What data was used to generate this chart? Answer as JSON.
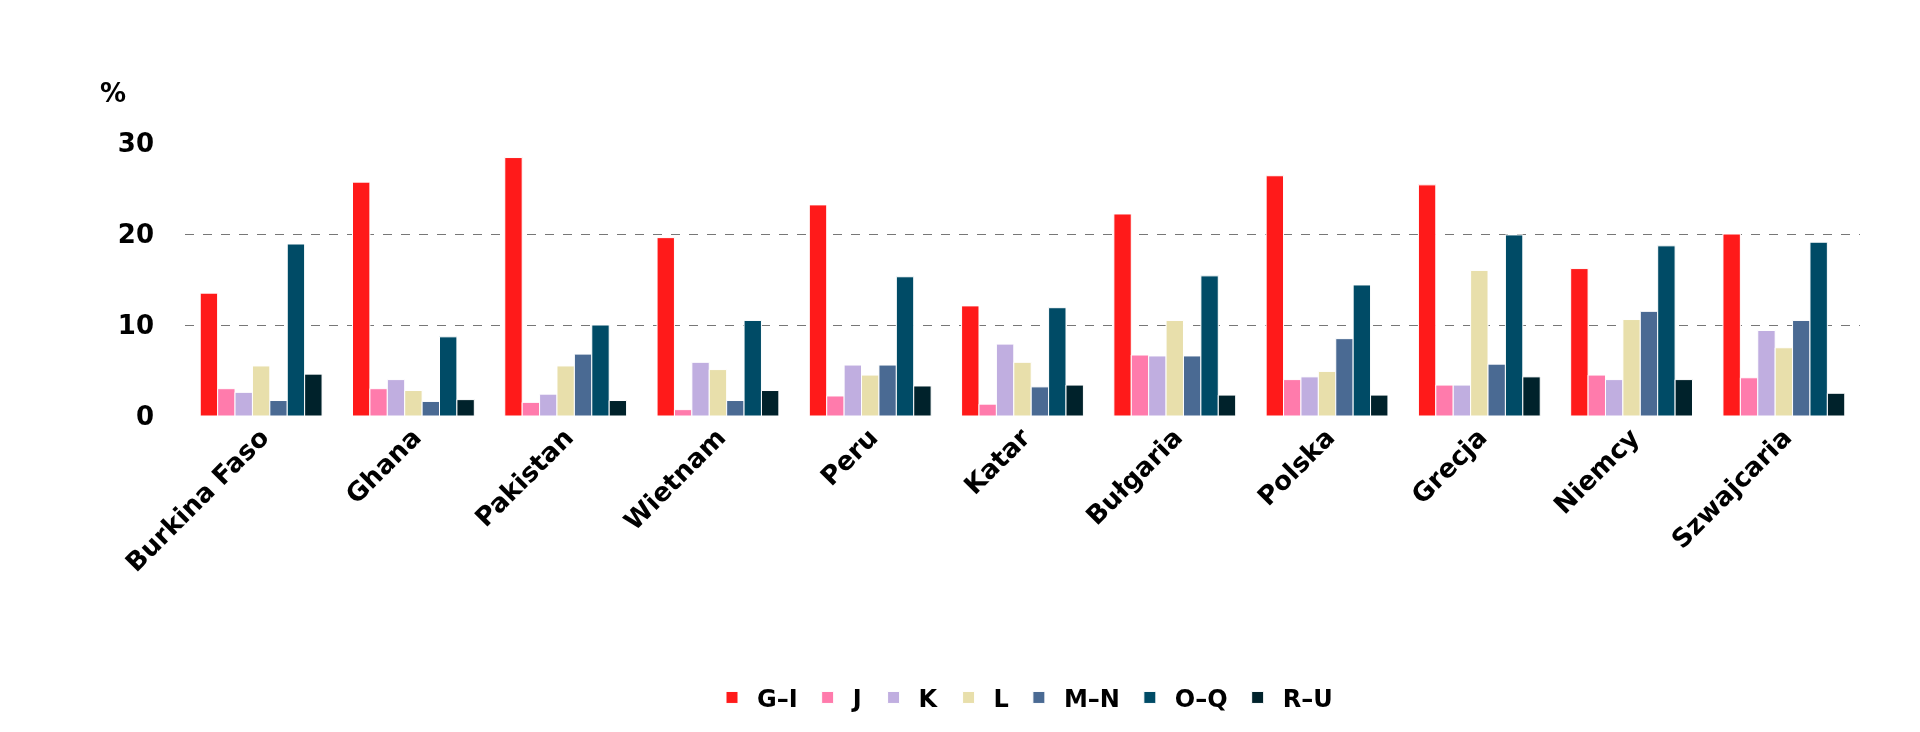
{
  "chart_data": {
    "type": "bar",
    "ylabel": "%",
    "categories": [
      "Burkina Faso",
      "Ghana",
      "Pakistan",
      "Wietnam",
      "Peru",
      "Katar",
      "Bułgaria",
      "Polska",
      "Grecja",
      "Niemcy",
      "Szwajcaria"
    ],
    "series": [
      {
        "name": "G–I",
        "color": "#ff1a1a",
        "values": [
          13.5,
          25.7,
          28.4,
          19.6,
          23.2,
          12.1,
          22.2,
          26.4,
          25.4,
          16.2,
          20.0
        ]
      },
      {
        "name": "J",
        "color": "#ff7bac",
        "values": [
          3.0,
          3.0,
          1.5,
          0.7,
          2.2,
          1.3,
          6.7,
          4.0,
          3.4,
          4.5,
          4.2
        ]
      },
      {
        "name": "K",
        "color": "#c0aee0",
        "values": [
          2.6,
          4.0,
          2.4,
          5.9,
          5.6,
          7.9,
          6.6,
          4.3,
          3.4,
          4.0,
          9.4
        ]
      },
      {
        "name": "L",
        "color": "#e8dfab",
        "values": [
          5.5,
          2.8,
          5.5,
          5.1,
          4.5,
          5.9,
          10.5,
          4.9,
          16.0,
          10.6,
          7.5
        ]
      },
      {
        "name": "M–N",
        "color": "#4a6a93",
        "values": [
          1.7,
          1.6,
          6.8,
          1.7,
          5.6,
          3.2,
          6.6,
          8.5,
          5.7,
          11.5,
          10.5
        ]
      },
      {
        "name": "O–Q",
        "color": "#004b66",
        "values": [
          18.9,
          8.7,
          10.0,
          10.5,
          15.3,
          11.9,
          15.4,
          14.4,
          19.9,
          18.7,
          19.1
        ]
      },
      {
        "name": "R–U",
        "color": "#00222b",
        "values": [
          4.6,
          1.8,
          1.7,
          2.8,
          3.3,
          3.4,
          2.3,
          2.3,
          4.3,
          4.0,
          2.5
        ]
      }
    ],
    "ylim": [
      0,
      30
    ],
    "yticks": [
      0,
      10,
      20,
      30
    ],
    "grid": "y",
    "legend": "bottom"
  }
}
